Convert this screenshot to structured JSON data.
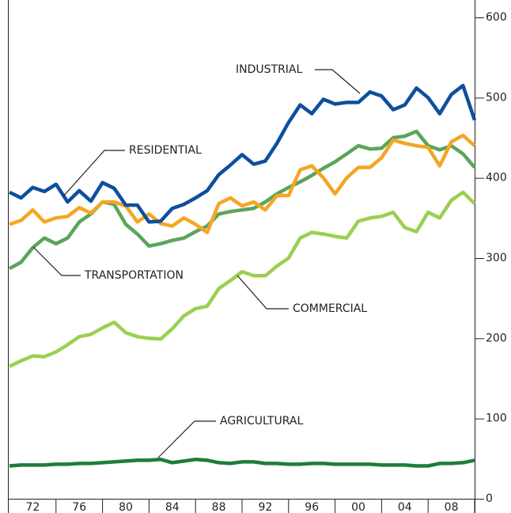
{
  "chart_data": {
    "type": "line",
    "x": [
      1970,
      1971,
      1972,
      1973,
      1974,
      1975,
      1976,
      1977,
      1978,
      1979,
      1980,
      1981,
      1982,
      1983,
      1984,
      1985,
      1986,
      1987,
      1988,
      1989,
      1990,
      1991,
      1992,
      1993,
      1994,
      1995,
      1996,
      1997,
      1998,
      1999,
      2000,
      2001,
      2002,
      2003,
      2004,
      2005,
      2006,
      2007,
      2008,
      2009,
      2010
    ],
    "series": [
      {
        "name": "INDUSTRIAL",
        "color": "#0d4f9e",
        "values": [
          382,
          375,
          388,
          383,
          392,
          370,
          384,
          371,
          394,
          387,
          366,
          366,
          345,
          346,
          362,
          367,
          375,
          384,
          404,
          416,
          429,
          417,
          421,
          443,
          469,
          491,
          480,
          498,
          492,
          494,
          494,
          507,
          502,
          485,
          491,
          512,
          500,
          480,
          504,
          515,
          472
        ]
      },
      {
        "name": "RESIDENTIAL",
        "color": "#f5a623",
        "values": [
          342,
          347,
          360,
          345,
          350,
          352,
          363,
          356,
          370,
          370,
          365,
          345,
          355,
          343,
          340,
          350,
          342,
          332,
          368,
          375,
          365,
          370,
          360,
          378,
          378,
          410,
          415,
          400,
          380,
          400,
          413,
          413,
          425,
          447,
          443,
          440,
          438,
          415,
          445,
          453,
          440
        ]
      },
      {
        "name": "TRANSPORTATION",
        "color": "#5aa55a",
        "values": [
          287,
          295,
          313,
          325,
          318,
          325,
          345,
          355,
          370,
          367,
          342,
          330,
          315,
          318,
          322,
          325,
          333,
          340,
          355,
          358,
          360,
          362,
          370,
          380,
          388,
          395,
          403,
          412,
          420,
          430,
          440,
          436,
          437,
          450,
          452,
          458,
          440,
          435,
          440,
          430,
          413
        ]
      },
      {
        "name": "COMMERCIAL",
        "color": "#9ccf50",
        "values": [
          165,
          172,
          178,
          177,
          183,
          192,
          202,
          205,
          213,
          220,
          207,
          202,
          200,
          199,
          212,
          228,
          237,
          240,
          262,
          272,
          283,
          278,
          278,
          290,
          300,
          325,
          332,
          330,
          327,
          325,
          346,
          350,
          352,
          357,
          338,
          333,
          357,
          350,
          372,
          382,
          368
        ]
      },
      {
        "name": "AGRICULTURAL",
        "color": "#1e7d3a",
        "values": [
          41,
          42,
          42,
          42,
          43,
          43,
          44,
          44,
          45,
          46,
          47,
          48,
          48,
          49,
          45,
          47,
          49,
          48,
          45,
          44,
          46,
          46,
          44,
          44,
          43,
          43,
          44,
          44,
          43,
          43,
          43,
          43,
          42,
          42,
          42,
          41,
          41,
          44,
          44,
          45,
          48
        ]
      }
    ],
    "xlim": [
      1970,
      2010
    ],
    "xticks": [
      {
        "value": 1972,
        "label": "72"
      },
      {
        "value": 1976,
        "label": "76"
      },
      {
        "value": 1980,
        "label": "80"
      },
      {
        "value": 1984,
        "label": "84"
      },
      {
        "value": 1988,
        "label": "88"
      },
      {
        "value": 1992,
        "label": "92"
      },
      {
        "value": 1996,
        "label": "96"
      },
      {
        "value": 2000,
        "label": "00"
      },
      {
        "value": 2004,
        "label": "04"
      },
      {
        "value": 2008,
        "label": "08"
      }
    ],
    "ylim": [
      0,
      600
    ],
    "yticks": [
      0,
      100,
      200,
      300,
      400,
      500,
      600
    ]
  }
}
